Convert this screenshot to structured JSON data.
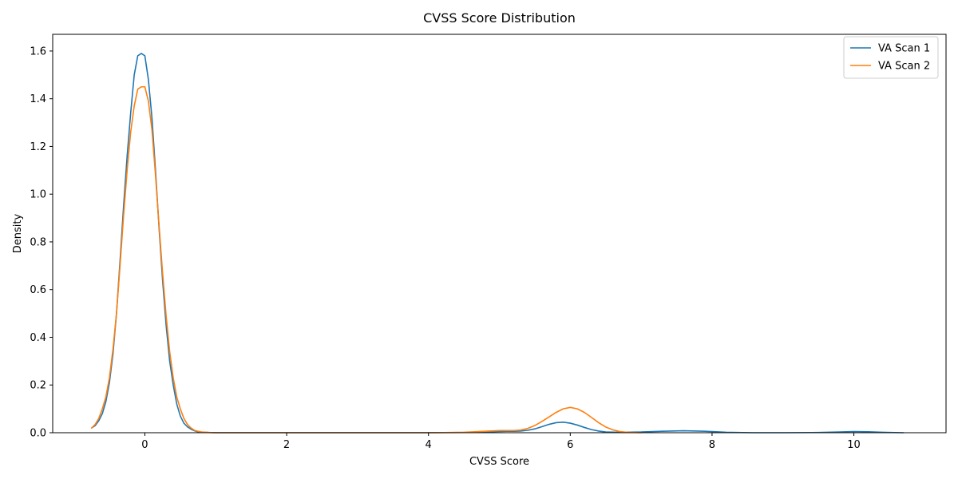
{
  "chart_data": {
    "type": "line",
    "title": "CVSS Score Distribution",
    "xlabel": "CVSS Score",
    "ylabel": "Density",
    "xlim": [
      -1.3,
      11.3
    ],
    "ylim": [
      0,
      1.67
    ],
    "xticks": [
      0,
      2,
      4,
      6,
      8,
      10
    ],
    "yticks": [
      0.0,
      0.2,
      0.4,
      0.6,
      0.8,
      1.0,
      1.2,
      1.4,
      1.6
    ],
    "grid": false,
    "legend_position": "top-right",
    "series": [
      {
        "name": "VA Scan 1",
        "color": "#1f77b4",
        "x": [
          -0.75,
          -0.7,
          -0.65,
          -0.6,
          -0.55,
          -0.5,
          -0.45,
          -0.4,
          -0.35,
          -0.3,
          -0.25,
          -0.2,
          -0.15,
          -0.1,
          -0.05,
          0.0,
          0.05,
          0.1,
          0.15,
          0.2,
          0.25,
          0.3,
          0.35,
          0.4,
          0.45,
          0.5,
          0.55,
          0.6,
          0.65,
          0.7,
          0.75,
          0.8,
          0.9,
          1.0,
          1.2,
          1.5,
          2.0,
          3.0,
          4.0,
          4.5,
          4.8,
          5.0,
          5.1,
          5.2,
          5.3,
          5.4,
          5.5,
          5.6,
          5.7,
          5.8,
          5.9,
          6.0,
          6.1,
          6.2,
          6.3,
          6.4,
          6.5,
          6.7,
          7.0,
          7.3,
          7.6,
          7.9,
          8.2,
          8.6,
          9.0,
          9.5,
          9.8,
          10.0,
          10.2,
          10.4,
          10.7
        ],
        "y": [
          0.02,
          0.03,
          0.05,
          0.08,
          0.13,
          0.21,
          0.33,
          0.5,
          0.72,
          0.95,
          1.16,
          1.34,
          1.5,
          1.58,
          1.59,
          1.58,
          1.48,
          1.32,
          1.1,
          0.86,
          0.64,
          0.45,
          0.3,
          0.2,
          0.12,
          0.07,
          0.04,
          0.025,
          0.015,
          0.008,
          0.004,
          0.002,
          0.001,
          0.0,
          0.0,
          0.0,
          0.0,
          0.0,
          0.0,
          0.001,
          0.003,
          0.005,
          0.006,
          0.006,
          0.007,
          0.01,
          0.016,
          0.025,
          0.035,
          0.042,
          0.044,
          0.04,
          0.032,
          0.022,
          0.013,
          0.007,
          0.003,
          0.002,
          0.003,
          0.006,
          0.008,
          0.006,
          0.002,
          0.0,
          0.0,
          0.001,
          0.003,
          0.005,
          0.004,
          0.002,
          0.0
        ]
      },
      {
        "name": "VA Scan 2",
        "color": "#ff7f0e",
        "x": [
          -0.75,
          -0.7,
          -0.65,
          -0.6,
          -0.55,
          -0.5,
          -0.45,
          -0.4,
          -0.35,
          -0.3,
          -0.25,
          -0.2,
          -0.15,
          -0.1,
          -0.05,
          0.0,
          0.05,
          0.1,
          0.15,
          0.2,
          0.25,
          0.3,
          0.35,
          0.4,
          0.45,
          0.5,
          0.55,
          0.6,
          0.65,
          0.7,
          0.75,
          0.8,
          0.9,
          1.0,
          1.2,
          1.5,
          2.0,
          3.0,
          4.0,
          4.5,
          4.8,
          5.0,
          5.1,
          5.2,
          5.3,
          5.4,
          5.5,
          5.6,
          5.7,
          5.8,
          5.9,
          6.0,
          6.1,
          6.2,
          6.3,
          6.4,
          6.5,
          6.6,
          6.7,
          6.8,
          6.9,
          7.0
        ],
        "y": [
          0.02,
          0.035,
          0.06,
          0.1,
          0.15,
          0.23,
          0.35,
          0.5,
          0.7,
          0.91,
          1.1,
          1.26,
          1.37,
          1.44,
          1.45,
          1.45,
          1.39,
          1.27,
          1.08,
          0.87,
          0.67,
          0.49,
          0.34,
          0.23,
          0.15,
          0.1,
          0.06,
          0.035,
          0.02,
          0.01,
          0.006,
          0.003,
          0.001,
          0.0,
          0.0,
          0.0,
          0.0,
          0.0,
          0.0,
          0.002,
          0.006,
          0.009,
          0.009,
          0.009,
          0.011,
          0.018,
          0.03,
          0.047,
          0.066,
          0.085,
          0.1,
          0.106,
          0.1,
          0.085,
          0.064,
          0.042,
          0.024,
          0.012,
          0.005,
          0.002,
          0.001,
          0.0
        ]
      }
    ]
  }
}
